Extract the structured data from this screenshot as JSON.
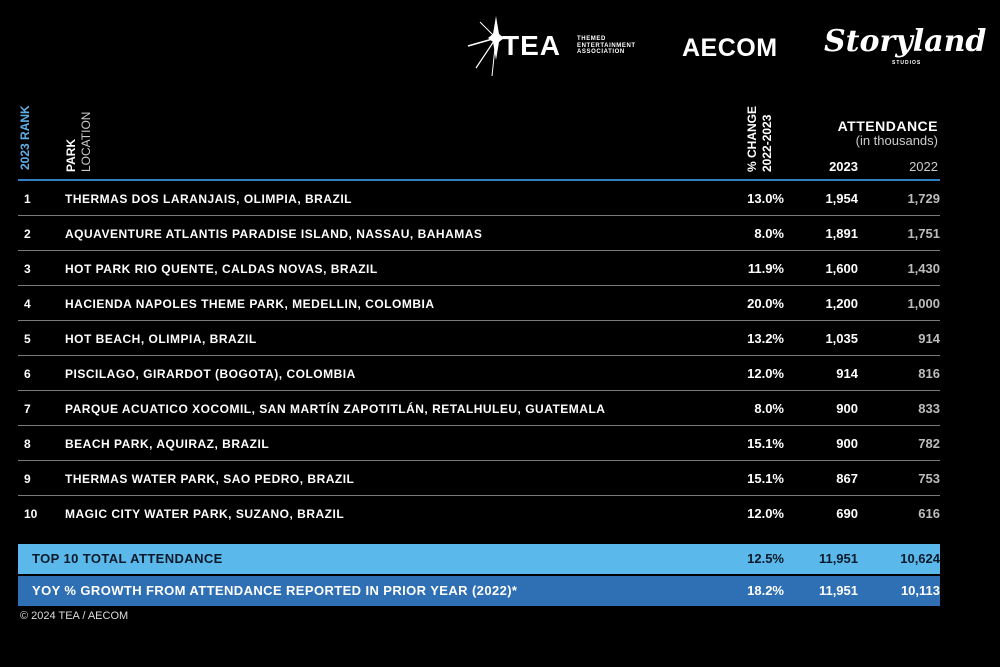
{
  "logos": {
    "tea_word": "TEA",
    "tea_subtitle": [
      "THEMED",
      "ENTERTAINMENT",
      "ASSOCIATION"
    ],
    "aecom": "AECOM",
    "storyland": "Storyland",
    "storyland_sub": "STUDIOS"
  },
  "chart_data": {
    "type": "table",
    "headers": {
      "rank": "2023 RANK",
      "park": "PARK",
      "location": "LOCATION",
      "change": "% CHANGE",
      "change_period": "2022-2023",
      "attendance": "ATTENDANCE",
      "attendance_unit": "(in thousands)",
      "year_current": "2023",
      "year_prior": "2022"
    },
    "rows": [
      {
        "rank": "1",
        "park": "THERMAS DOS LARANJAIS, OLIMPIA, BRAZIL",
        "change": "13.0%",
        "a2023": "1,954",
        "a2022": "1,729"
      },
      {
        "rank": "2",
        "park": "AQUAVENTURE ATLANTIS PARADISE ISLAND, NASSAU, BAHAMAS",
        "change": "8.0%",
        "a2023": "1,891",
        "a2022": "1,751"
      },
      {
        "rank": "3",
        "park": "HOT PARK RIO QUENTE, CALDAS NOVAS, BRAZIL",
        "change": "11.9%",
        "a2023": "1,600",
        "a2022": "1,430"
      },
      {
        "rank": "4",
        "park": "HACIENDA NAPOLES THEME PARK, MEDELLIN, COLOMBIA",
        "change": "20.0%",
        "a2023": "1,200",
        "a2022": "1,000"
      },
      {
        "rank": "5",
        "park": "HOT BEACH, OLIMPIA, BRAZIL",
        "change": "13.2%",
        "a2023": "1,035",
        "a2022": "914"
      },
      {
        "rank": "6",
        "park": "PISCILAGO, GIRARDOT (BOGOTA), COLOMBIA",
        "change": "12.0%",
        "a2023": "914",
        "a2022": "816"
      },
      {
        "rank": "7",
        "park": "PARQUE ACUATICO XOCOMIL, SAN MARTÍN ZAPOTITLÁN, RETALHULEU, GUATEMALA",
        "change": "8.0%",
        "a2023": "900",
        "a2022": "833"
      },
      {
        "rank": "8",
        "park": "BEACH PARK, AQUIRAZ, BRAZIL",
        "change": "15.1%",
        "a2023": "900",
        "a2022": "782"
      },
      {
        "rank": "9",
        "park": "THERMAS WATER PARK, SAO PEDRO, BRAZIL",
        "change": "15.1%",
        "a2023": "867",
        "a2022": "753"
      },
      {
        "rank": "10",
        "park": "MAGIC CITY WATER PARK, SUZANO, BRAZIL",
        "change": "12.0%",
        "a2023": "690",
        "a2022": "616"
      }
    ],
    "total": {
      "label": "TOP 10 TOTAL ATTENDANCE",
      "change": "12.5%",
      "a2023": "11,951",
      "a2022": "10,624"
    },
    "yoy": {
      "label": "YOY % GROWTH FROM ATTENDANCE REPORTED IN PRIOR YEAR (2022)*",
      "change": "18.2%",
      "a2023": "11,951",
      "a2022": "10,113"
    }
  },
  "colors": {
    "accent_light": "#5bb8ea",
    "accent_dark": "#2f6fb3",
    "rank_header": "#5fb0e6"
  },
  "footer": {
    "copyright": "© 2024 TEA / AECOM"
  }
}
